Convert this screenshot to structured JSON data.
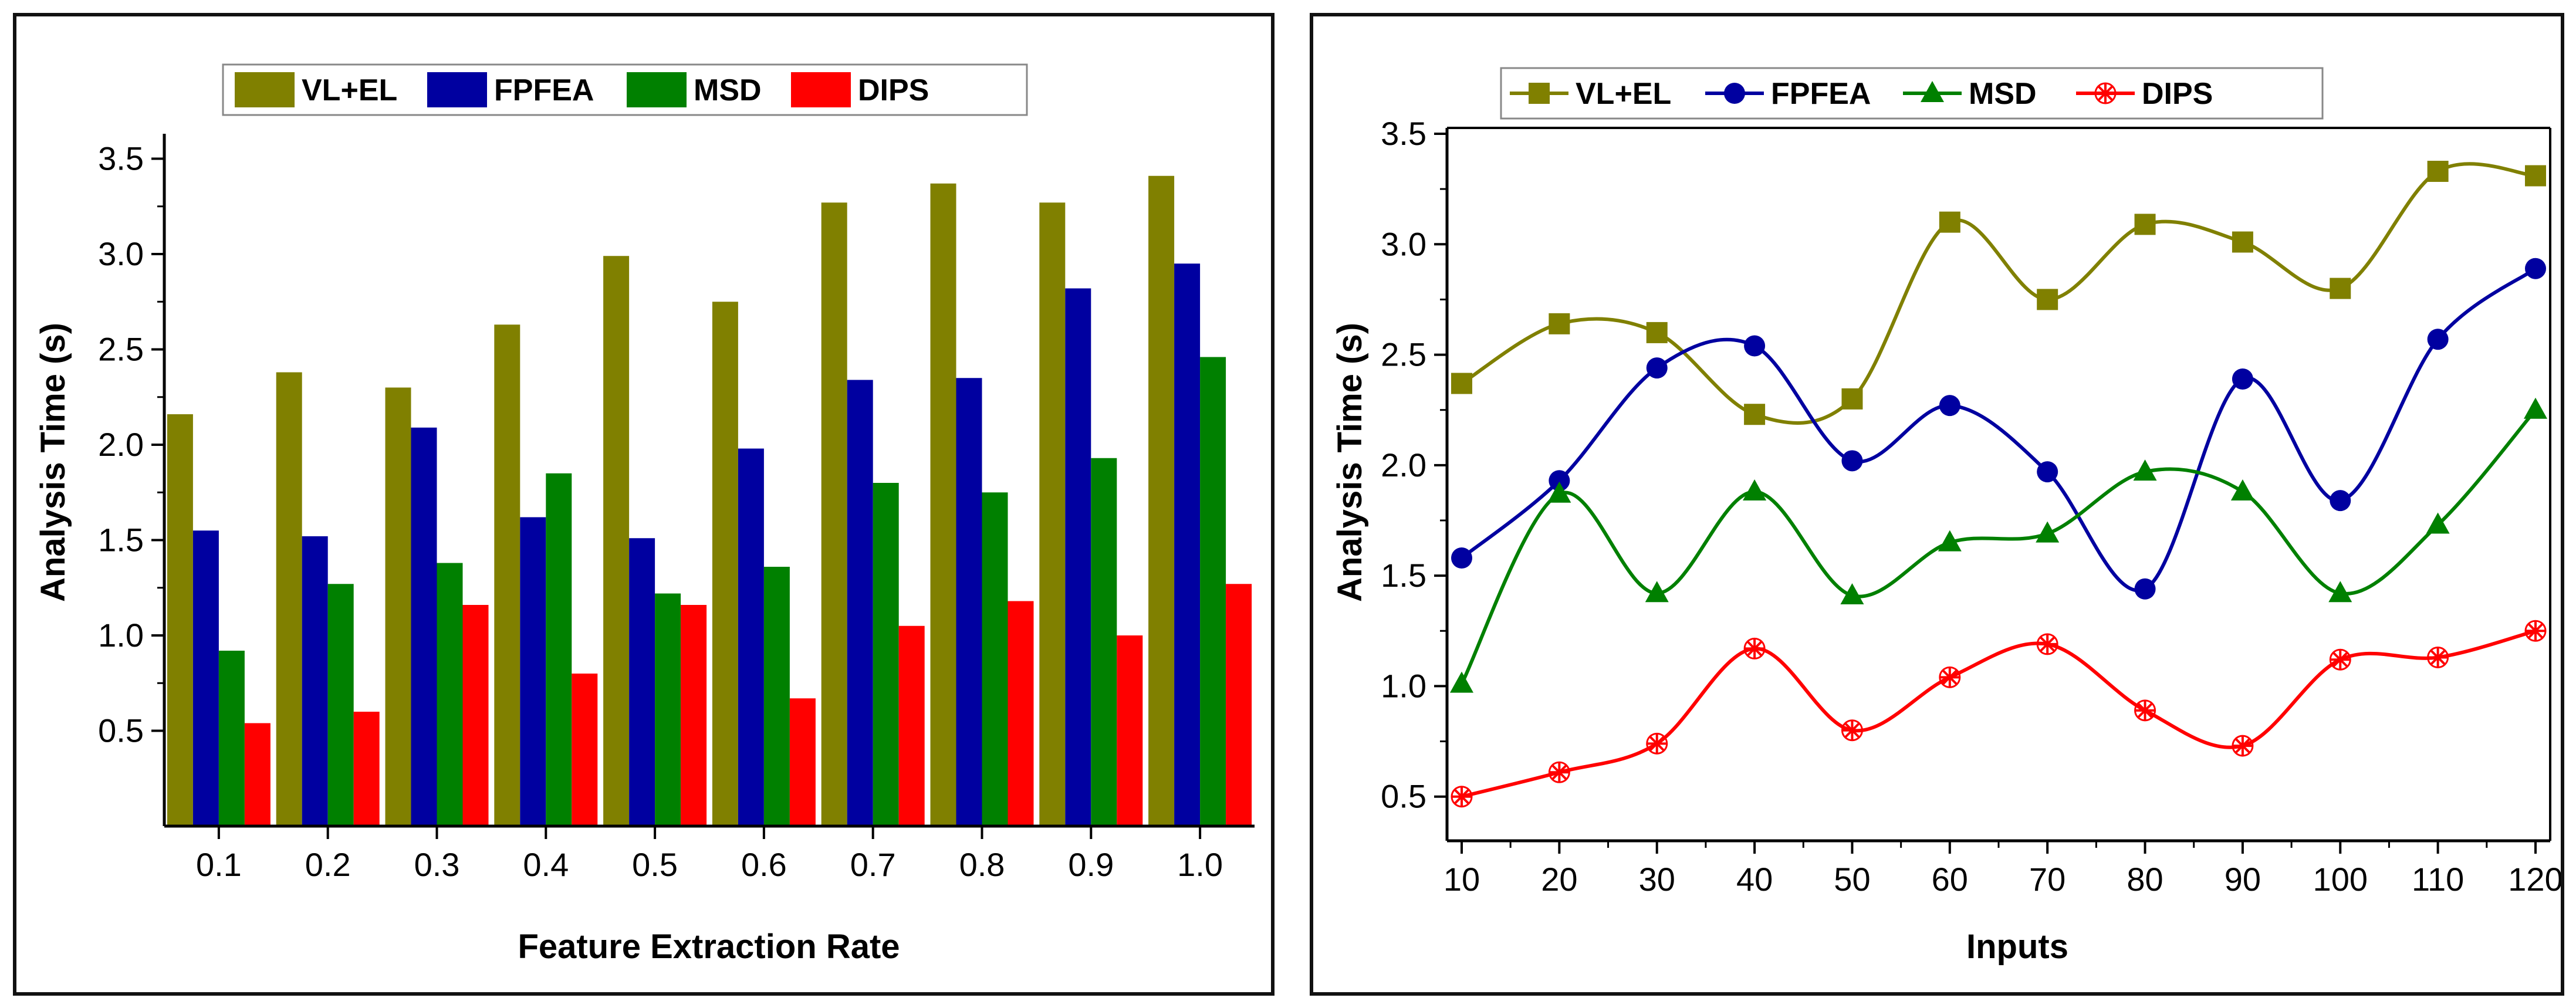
{
  "chart_data": [
    {
      "type": "bar",
      "title": "",
      "xlabel": "Feature Extraction Rate",
      "ylabel": "Analysis Time (s)",
      "ylim": [
        0.0,
        3.6
      ],
      "yticks": [
        "0.5",
        "1.0",
        "1.5",
        "2.0",
        "2.5",
        "3.0",
        "3.5"
      ],
      "categories": [
        "0.1",
        "0.2",
        "0.3",
        "0.4",
        "0.5",
        "0.6",
        "0.7",
        "0.8",
        "0.9",
        "1.0"
      ],
      "legend": [
        "VL+EL",
        "FPFEA",
        "MSD",
        "DIPS"
      ],
      "series": [
        {
          "name": "VL+EL",
          "color": "#808000",
          "values": [
            2.16,
            2.38,
            2.3,
            2.63,
            2.99,
            2.75,
            3.27,
            3.37,
            3.27,
            3.41
          ]
        },
        {
          "name": "FPFEA",
          "color": "#0000A0",
          "values": [
            1.55,
            1.52,
            2.09,
            1.62,
            1.51,
            1.98,
            2.34,
            2.35,
            2.82,
            2.95
          ]
        },
        {
          "name": "MSD",
          "color": "#008000",
          "values": [
            0.92,
            1.27,
            1.38,
            1.85,
            1.22,
            1.36,
            1.8,
            1.75,
            1.93,
            2.46
          ]
        },
        {
          "name": "DIPS",
          "color": "#FF0000",
          "values": [
            0.54,
            0.6,
            1.16,
            0.8,
            1.16,
            0.67,
            1.05,
            1.18,
            1.0,
            1.27
          ]
        }
      ]
    },
    {
      "type": "line",
      "title": "",
      "xlabel": "Inputs",
      "ylabel": "Analysis Time (s)",
      "xlim": [
        10,
        120
      ],
      "ylim": [
        0.3,
        3.5
      ],
      "yticks": [
        "0.5",
        "1.0",
        "1.5",
        "2.0",
        "2.5",
        "3.0",
        "3.5"
      ],
      "x": [
        10,
        20,
        30,
        40,
        50,
        60,
        70,
        80,
        90,
        100,
        110,
        120
      ],
      "xtick_labels": [
        "10",
        "20",
        "30",
        "40",
        "50",
        "60",
        "70",
        "80",
        "90",
        "100",
        "110",
        "120"
      ],
      "legend": [
        "VL+EL",
        "FPFEA",
        "MSD",
        "DIPS"
      ],
      "series": [
        {
          "name": "VL+EL",
          "color": "#808000",
          "marker": "square",
          "values": [
            2.37,
            2.64,
            2.6,
            2.23,
            2.3,
            3.1,
            2.75,
            3.09,
            3.01,
            2.8,
            3.33,
            3.31
          ]
        },
        {
          "name": "FPFEA",
          "color": "#0000A0",
          "marker": "circle",
          "values": [
            1.58,
            1.93,
            2.44,
            2.54,
            2.02,
            2.27,
            1.97,
            1.44,
            2.39,
            1.84,
            2.57,
            2.89
          ]
        },
        {
          "name": "MSD",
          "color": "#008000",
          "marker": "triangle",
          "values": [
            1.01,
            1.87,
            1.42,
            1.88,
            1.41,
            1.65,
            1.69,
            1.97,
            1.88,
            1.42,
            1.73,
            2.25
          ]
        },
        {
          "name": "DIPS",
          "color": "#FF0000",
          "marker": "asterisk",
          "values": [
            0.5,
            0.61,
            0.74,
            1.17,
            0.8,
            1.04,
            1.19,
            0.89,
            0.73,
            1.12,
            1.13,
            1.25
          ]
        }
      ]
    }
  ]
}
